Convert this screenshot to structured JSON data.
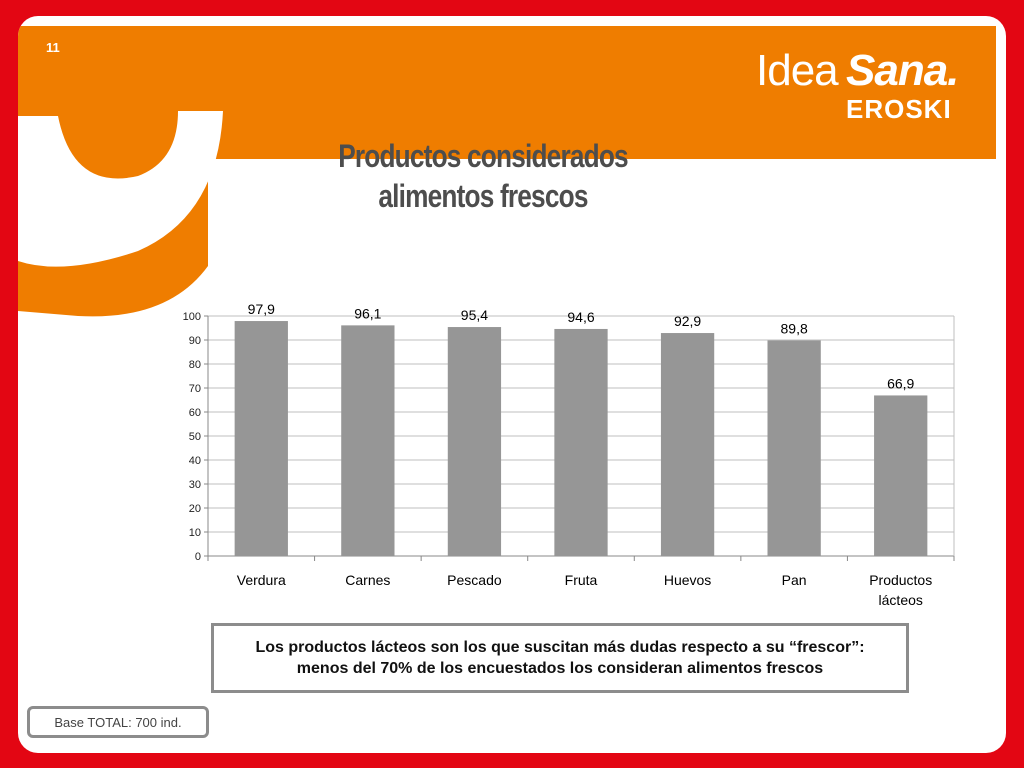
{
  "slide": {
    "number": "11",
    "title_line1": "Productos considerados",
    "title_line2": "alimentos frescos",
    "note": "Los productos lácteos son los que suscitan más dudas respecto a su “frescor”: menos del 70% de los encuestados los consideran alimentos frescos",
    "base": "Base TOTAL: 700 ind."
  },
  "logo": {
    "idea": "Idea",
    "sana": "Sana.",
    "eroski": "EROSKI"
  },
  "colors": {
    "frame": "#e30613",
    "brand_orange": "#ef7d00",
    "bar": "#969696",
    "grid": "#bfbfbf"
  },
  "chart_data": {
    "type": "bar",
    "categories": [
      "Verdura",
      "Carnes",
      "Pescado",
      "Fruta",
      "Huevos",
      "Pan",
      "Productos lácteos"
    ],
    "values": [
      97.9,
      96.1,
      95.4,
      94.6,
      92.9,
      89.8,
      66.9
    ],
    "value_labels": [
      "97,9",
      "96,1",
      "95,4",
      "94,6",
      "92,9",
      "89,8",
      "66,9"
    ],
    "ylim": [
      0,
      100
    ],
    "yticks": [
      0,
      10,
      20,
      30,
      40,
      50,
      60,
      70,
      80,
      90,
      100
    ],
    "grid": true
  }
}
